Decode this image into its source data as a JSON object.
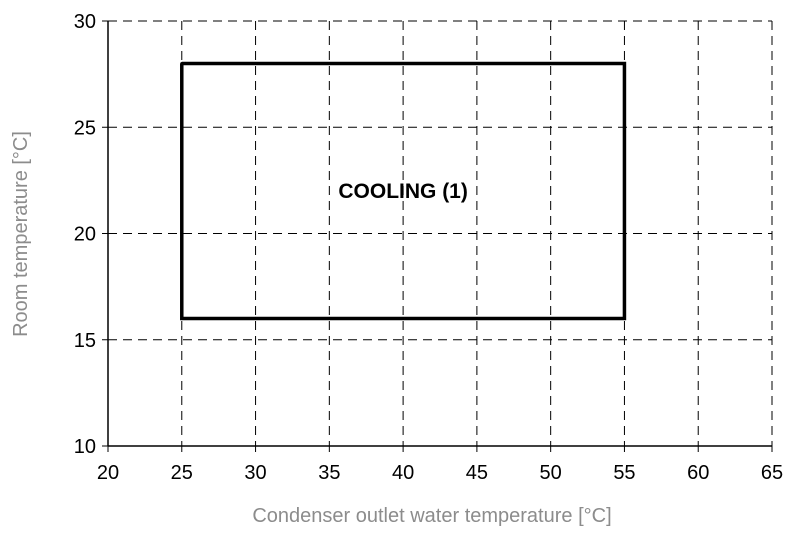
{
  "chart_data": {
    "type": "line",
    "title": "",
    "xlabel": "Condenser outlet water temperature [°C]",
    "ylabel": "Room temperature [°C]",
    "xlim": [
      20,
      65
    ],
    "ylim": [
      10,
      30
    ],
    "xticks": [
      20,
      25,
      30,
      35,
      40,
      45,
      50,
      55,
      60,
      65
    ],
    "yticks": [
      10,
      15,
      20,
      25,
      30
    ],
    "grid": true,
    "grid_style": "dashed",
    "series": [
      {
        "x": [
          25,
          55,
          55,
          25,
          25
        ],
        "y": [
          28,
          28,
          16,
          16,
          28
        ]
      }
    ],
    "annotations": [
      {
        "text": "COOLING (1)",
        "x": 40,
        "y": 22
      }
    ],
    "colors": {
      "line": "#000000",
      "grid": "#000000",
      "axis_text": "#000000",
      "axis_label": "#8c8c8c"
    }
  }
}
